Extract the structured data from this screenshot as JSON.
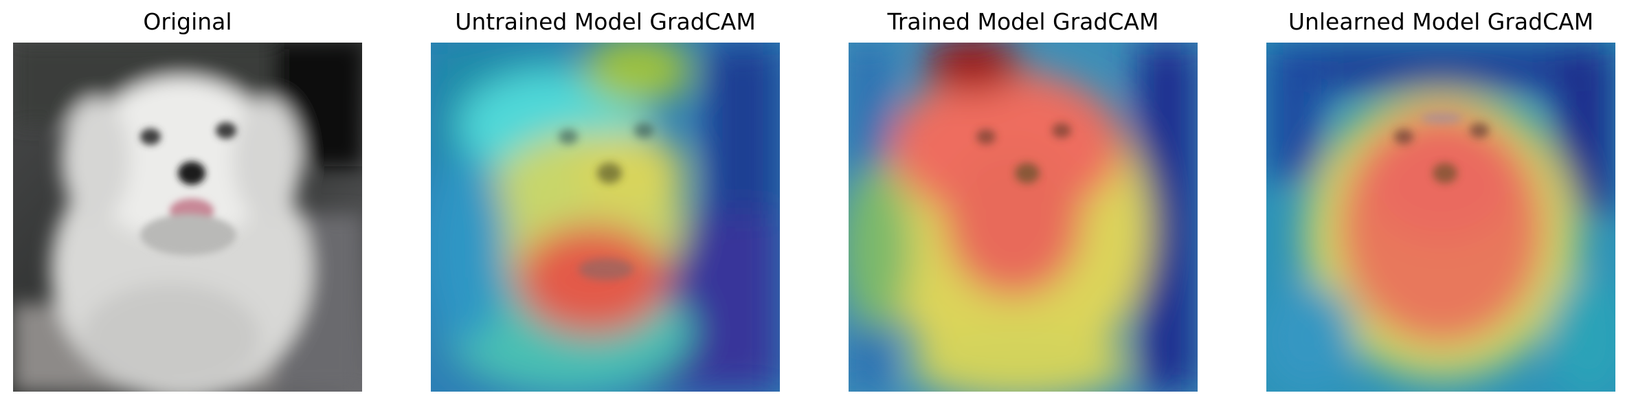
{
  "panels": [
    {
      "title": "Original"
    },
    {
      "title": "Untrained Model GradCAM"
    },
    {
      "title": "Trained Model GradCAM"
    },
    {
      "title": "Unlearned Model GradCAM"
    }
  ]
}
